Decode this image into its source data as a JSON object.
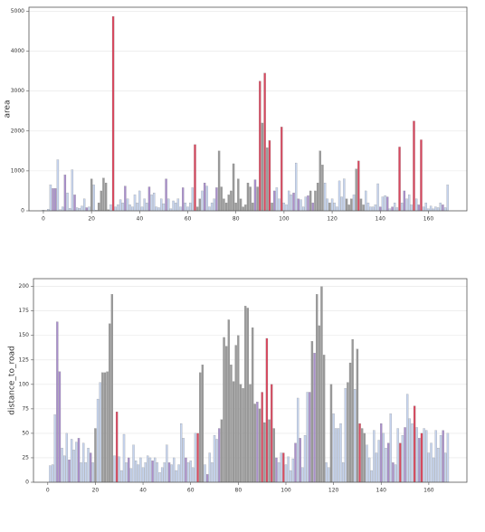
{
  "chart_data": [
    {
      "type": "bar",
      "y_label": "area",
      "grid": true,
      "xlim": [
        -6,
        176
      ],
      "xticks": [
        0,
        20,
        40,
        60,
        80,
        100,
        120,
        140,
        160
      ],
      "ylim": [
        0,
        5100
      ],
      "yticks": [
        0,
        1000,
        2000,
        3000,
        4000,
        5000
      ],
      "x": [
        0,
        1,
        2,
        3,
        4,
        5,
        6,
        7,
        8,
        9,
        10,
        11,
        12,
        13,
        14,
        15,
        16,
        17,
        18,
        19,
        20,
        21,
        22,
        23,
        24,
        25,
        26,
        27,
        28,
        29,
        30,
        31,
        32,
        33,
        34,
        35,
        36,
        37,
        38,
        39,
        40,
        41,
        42,
        43,
        44,
        45,
        46,
        47,
        48,
        49,
        50,
        51,
        52,
        53,
        54,
        55,
        56,
        57,
        58,
        59,
        60,
        61,
        62,
        63,
        64,
        65,
        66,
        67,
        68,
        69,
        70,
        71,
        72,
        73,
        74,
        75,
        76,
        77,
        78,
        79,
        80,
        81,
        82,
        83,
        84,
        85,
        86,
        87,
        88,
        89,
        90,
        91,
        92,
        93,
        94,
        95,
        96,
        97,
        98,
        99,
        100,
        101,
        102,
        103,
        104,
        105,
        106,
        107,
        108,
        109,
        110,
        111,
        112,
        113,
        114,
        115,
        116,
        117,
        118,
        119,
        120,
        121,
        122,
        123,
        124,
        125,
        126,
        127,
        128,
        129,
        130,
        131,
        132,
        133,
        134,
        135,
        136,
        137,
        138,
        139,
        140,
        141,
        142,
        143,
        144,
        145,
        146,
        147,
        148,
        149,
        150,
        151,
        152,
        153,
        154,
        155,
        156,
        157,
        158,
        159,
        160,
        161,
        162,
        163,
        164,
        165,
        166,
        167,
        168,
        169
      ],
      "values": [
        20,
        10,
        40,
        650,
        560,
        560,
        1280,
        30,
        100,
        900,
        450,
        60,
        1030,
        400,
        80,
        60,
        120,
        300,
        80,
        100,
        800,
        650,
        20,
        200,
        500,
        820,
        700,
        30,
        150,
        4870,
        100,
        150,
        280,
        200,
        620,
        300,
        150,
        100,
        400,
        200,
        500,
        100,
        300,
        200,
        600,
        400,
        450,
        100,
        80,
        300,
        180,
        800,
        300,
        50,
        250,
        200,
        300,
        100,
        580,
        200,
        100,
        200,
        580,
        1660,
        100,
        300,
        500,
        700,
        620,
        100,
        200,
        300,
        580,
        1500,
        600,
        300,
        200,
        400,
        500,
        1180,
        200,
        800,
        300,
        100,
        150,
        700,
        600,
        200,
        780,
        600,
        3250,
        2200,
        3450,
        1580,
        1760,
        200,
        500,
        580,
        300,
        2100,
        200,
        150,
        500,
        400,
        450,
        1200,
        300,
        280,
        100,
        350,
        380,
        500,
        200,
        500,
        700,
        1500,
        1150,
        700,
        300,
        200,
        300,
        200,
        100,
        750,
        350,
        800,
        300,
        150,
        300,
        400,
        1050,
        1250,
        300,
        150,
        500,
        200,
        100,
        100,
        150,
        680,
        100,
        350,
        380,
        350,
        50,
        100,
        200,
        80,
        1600,
        200,
        500,
        300,
        400,
        150,
        2250,
        300,
        150,
        1780,
        100,
        200,
        50,
        120,
        50,
        100,
        80,
        200,
        150,
        80,
        650,
        0
      ],
      "colors": [
        "#c6d4ee",
        "#c6d4ee",
        "#c6d4ee",
        "#c6d4ee",
        "#a98fcb",
        "#a98fcb",
        "#c6d4ee",
        "#c6d4ee",
        "#c6d4ee",
        "#a98fcb",
        "#c6d4ee",
        "#c6d4ee",
        "#c6d4ee",
        "#a98fcb",
        "#c6d4ee",
        "#c6d4ee",
        "#c6d4ee",
        "#c6d4ee",
        "#a98fcb",
        "#c6d4ee",
        "#9a9a9a",
        "#c6d4ee",
        "#c6d4ee",
        "#9a9a9a",
        "#9a9a9a",
        "#9a9a9a",
        "#9a9a9a",
        "#9a9a9a",
        "#c6d4ee",
        "#d9485f",
        "#c6d4ee",
        "#c6d4ee",
        "#c6d4ee",
        "#c6d4ee",
        "#a98fcb",
        "#c6d4ee",
        "#c6d4ee",
        "#c6d4ee",
        "#c6d4ee",
        "#c6d4ee",
        "#c6d4ee",
        "#c6d4ee",
        "#c6d4ee",
        "#c6d4ee",
        "#a98fcb",
        "#c6d4ee",
        "#c6d4ee",
        "#c6d4ee",
        "#c6d4ee",
        "#c6d4ee",
        "#c6d4ee",
        "#a98fcb",
        "#c6d4ee",
        "#c6d4ee",
        "#c6d4ee",
        "#c6d4ee",
        "#c6d4ee",
        "#c6d4ee",
        "#a98fcb",
        "#c6d4ee",
        "#c6d4ee",
        "#c6d4ee",
        "#c6d4ee",
        "#d9485f",
        "#9a9a9a",
        "#9a9a9a",
        "#c6d4ee",
        "#a98fcb",
        "#c6d4ee",
        "#c6d4ee",
        "#c6d4ee",
        "#c6d4ee",
        "#a98fcb",
        "#9a9a9a",
        "#9a9a9a",
        "#9a9a9a",
        "#9a9a9a",
        "#9a9a9a",
        "#9a9a9a",
        "#9a9a9a",
        "#9a9a9a",
        "#9a9a9a",
        "#9a9a9a",
        "#9a9a9a",
        "#9a9a9a",
        "#9a9a9a",
        "#9a9a9a",
        "#9a9a9a",
        "#a98fcb",
        "#9a9a9a",
        "#d9485f",
        "#9a9a9a",
        "#d9485f",
        "#9a9a9a",
        "#d9485f",
        "#9a9a9a",
        "#a98fcb",
        "#c6d4ee",
        "#c6d4ee",
        "#d9485f",
        "#c6d4ee",
        "#c6d4ee",
        "#c6d4ee",
        "#c6d4ee",
        "#a98fcb",
        "#c6d4ee",
        "#a98fcb",
        "#c6d4ee",
        "#c6d4ee",
        "#c6d4ee",
        "#a98fcb",
        "#9a9a9a",
        "#a98fcb",
        "#9a9a9a",
        "#9a9a9a",
        "#9a9a9a",
        "#9a9a9a",
        "#c6d4ee",
        "#c6d4ee",
        "#9a9a9a",
        "#c6d4ee",
        "#c6d4ee",
        "#c6d4ee",
        "#c6d4ee",
        "#c6d4ee",
        "#c6d4ee",
        "#9a9a9a",
        "#9a9a9a",
        "#9a9a9a",
        "#c6d4ee",
        "#9a9a9a",
        "#d9485f",
        "#9a9a9a",
        "#9a9a9a",
        "#c6d4ee",
        "#c6d4ee",
        "#c6d4ee",
        "#c6d4ee",
        "#c6d4ee",
        "#c6d4ee",
        "#a98fcb",
        "#c6d4ee",
        "#c6d4ee",
        "#a98fcb",
        "#c6d4ee",
        "#a98fcb",
        "#c6d4ee",
        "#c6d4ee",
        "#d9485f",
        "#c6d4ee",
        "#a98fcb",
        "#c6d4ee",
        "#c6d4ee",
        "#c6d4ee",
        "#d9485f",
        "#c6d4ee",
        "#a98fcb",
        "#d9485f",
        "#c6d4ee",
        "#c6d4ee",
        "#c6d4ee",
        "#c6d4ee",
        "#c6d4ee",
        "#c6d4ee",
        "#c6d4ee",
        "#c6d4ee",
        "#a98fcb",
        "#c6d4ee",
        "#c6d4ee",
        "#c6d4ee"
      ]
    },
    {
      "type": "bar",
      "y_label": "distance_to_road",
      "grid": true,
      "xlim": [
        -6,
        176
      ],
      "xticks": [
        0,
        20,
        40,
        60,
        80,
        100,
        120,
        140,
        160
      ],
      "ylim": [
        0,
        208
      ],
      "yticks": [
        0,
        25,
        50,
        75,
        100,
        125,
        150,
        175,
        200
      ],
      "x": [
        0,
        1,
        2,
        3,
        4,
        5,
        6,
        7,
        8,
        9,
        10,
        11,
        12,
        13,
        14,
        15,
        16,
        17,
        18,
        19,
        20,
        21,
        22,
        23,
        24,
        25,
        26,
        27,
        28,
        29,
        30,
        31,
        32,
        33,
        34,
        35,
        36,
        37,
        38,
        39,
        40,
        41,
        42,
        43,
        44,
        45,
        46,
        47,
        48,
        49,
        50,
        51,
        52,
        53,
        54,
        55,
        56,
        57,
        58,
        59,
        60,
        61,
        62,
        63,
        64,
        65,
        66,
        67,
        68,
        69,
        70,
        71,
        72,
        73,
        74,
        75,
        76,
        77,
        78,
        79,
        80,
        81,
        82,
        83,
        84,
        85,
        86,
        87,
        88,
        89,
        90,
        91,
        92,
        93,
        94,
        95,
        96,
        97,
        98,
        99,
        100,
        101,
        102,
        103,
        104,
        105,
        106,
        107,
        108,
        109,
        110,
        111,
        112,
        113,
        114,
        115,
        116,
        117,
        118,
        119,
        120,
        121,
        122,
        123,
        124,
        125,
        126,
        127,
        128,
        129,
        130,
        131,
        132,
        133,
        134,
        135,
        136,
        137,
        138,
        139,
        140,
        141,
        142,
        143,
        144,
        145,
        146,
        147,
        148,
        149,
        150,
        151,
        152,
        153,
        154,
        155,
        156,
        157,
        158,
        159,
        160,
        161,
        162,
        163,
        164,
        165,
        166,
        167,
        168,
        169
      ],
      "values": [
        0,
        17,
        18,
        69,
        164,
        113,
        35,
        27,
        50,
        23,
        44,
        33,
        41,
        45,
        20,
        40,
        20,
        35,
        30,
        20,
        55,
        85,
        102,
        112,
        112,
        113,
        162,
        192,
        27,
        72,
        26,
        12,
        49,
        20,
        25,
        14,
        38,
        22,
        18,
        25,
        15,
        20,
        27,
        25,
        22,
        25,
        20,
        10,
        15,
        20,
        38,
        20,
        18,
        25,
        12,
        18,
        60,
        45,
        25,
        20,
        22,
        15,
        50,
        50,
        112,
        120,
        18,
        8,
        30,
        20,
        48,
        44,
        55,
        64,
        148,
        139,
        166,
        120,
        103,
        140,
        150,
        100,
        96,
        180,
        178,
        100,
        158,
        80,
        82,
        75,
        92,
        61,
        147,
        64,
        100,
        55,
        25,
        20,
        30,
        30,
        18,
        26,
        12,
        24,
        40,
        86,
        45,
        15,
        48,
        92,
        92,
        144,
        132,
        192,
        160,
        200,
        130,
        20,
        15,
        100,
        70,
        55,
        55,
        60,
        20,
        96,
        102,
        122,
        146,
        95,
        136,
        60,
        55,
        50,
        38,
        25,
        12,
        53,
        30,
        43,
        60,
        50,
        35,
        40,
        70,
        20,
        18,
        55,
        40,
        48,
        56,
        90,
        65,
        60,
        78,
        56,
        45,
        50,
        55,
        53,
        30,
        40,
        25,
        53,
        35,
        48,
        53,
        30,
        50,
        0
      ],
      "colors": [
        "#c6d4ee",
        "#c6d4ee",
        "#c6d4ee",
        "#c6d4ee",
        "#a98fcb",
        "#a98fcb",
        "#c6d4ee",
        "#c6d4ee",
        "#c6d4ee",
        "#a98fcb",
        "#c6d4ee",
        "#c6d4ee",
        "#c6d4ee",
        "#a98fcb",
        "#c6d4ee",
        "#c6d4ee",
        "#c6d4ee",
        "#c6d4ee",
        "#a98fcb",
        "#c6d4ee",
        "#9a9a9a",
        "#c6d4ee",
        "#c6d4ee",
        "#9a9a9a",
        "#9a9a9a",
        "#9a9a9a",
        "#9a9a9a",
        "#9a9a9a",
        "#c6d4ee",
        "#d9485f",
        "#c6d4ee",
        "#c6d4ee",
        "#c6d4ee",
        "#c6d4ee",
        "#a98fcb",
        "#c6d4ee",
        "#c6d4ee",
        "#c6d4ee",
        "#c6d4ee",
        "#c6d4ee",
        "#c6d4ee",
        "#c6d4ee",
        "#c6d4ee",
        "#c6d4ee",
        "#a98fcb",
        "#c6d4ee",
        "#c6d4ee",
        "#c6d4ee",
        "#c6d4ee",
        "#c6d4ee",
        "#c6d4ee",
        "#a98fcb",
        "#c6d4ee",
        "#c6d4ee",
        "#c6d4ee",
        "#c6d4ee",
        "#c6d4ee",
        "#c6d4ee",
        "#a98fcb",
        "#c6d4ee",
        "#c6d4ee",
        "#c6d4ee",
        "#c6d4ee",
        "#d9485f",
        "#9a9a9a",
        "#9a9a9a",
        "#c6d4ee",
        "#a98fcb",
        "#c6d4ee",
        "#c6d4ee",
        "#c6d4ee",
        "#c6d4ee",
        "#a98fcb",
        "#9a9a9a",
        "#9a9a9a",
        "#9a9a9a",
        "#9a9a9a",
        "#9a9a9a",
        "#9a9a9a",
        "#9a9a9a",
        "#9a9a9a",
        "#9a9a9a",
        "#9a9a9a",
        "#9a9a9a",
        "#9a9a9a",
        "#9a9a9a",
        "#9a9a9a",
        "#9a9a9a",
        "#a98fcb",
        "#9a9a9a",
        "#d9485f",
        "#9a9a9a",
        "#d9485f",
        "#9a9a9a",
        "#d9485f",
        "#9a9a9a",
        "#a98fcb",
        "#c6d4ee",
        "#c6d4ee",
        "#d9485f",
        "#c6d4ee",
        "#c6d4ee",
        "#c6d4ee",
        "#c6d4ee",
        "#a98fcb",
        "#c6d4ee",
        "#a98fcb",
        "#c6d4ee",
        "#c6d4ee",
        "#c6d4ee",
        "#a98fcb",
        "#9a9a9a",
        "#a98fcb",
        "#9a9a9a",
        "#9a9a9a",
        "#9a9a9a",
        "#9a9a9a",
        "#c6d4ee",
        "#c6d4ee",
        "#9a9a9a",
        "#c6d4ee",
        "#c6d4ee",
        "#c6d4ee",
        "#c6d4ee",
        "#c6d4ee",
        "#c6d4ee",
        "#9a9a9a",
        "#9a9a9a",
        "#9a9a9a",
        "#c6d4ee",
        "#9a9a9a",
        "#d9485f",
        "#9a9a9a",
        "#9a9a9a",
        "#c6d4ee",
        "#c6d4ee",
        "#c6d4ee",
        "#c6d4ee",
        "#c6d4ee",
        "#c6d4ee",
        "#a98fcb",
        "#c6d4ee",
        "#c6d4ee",
        "#a98fcb",
        "#c6d4ee",
        "#a98fcb",
        "#c6d4ee",
        "#c6d4ee",
        "#d9485f",
        "#c6d4ee",
        "#a98fcb",
        "#c6d4ee",
        "#c6d4ee",
        "#c6d4ee",
        "#d9485f",
        "#c6d4ee",
        "#a98fcb",
        "#d9485f",
        "#c6d4ee",
        "#c6d4ee",
        "#c6d4ee",
        "#c6d4ee",
        "#c6d4ee",
        "#c6d4ee",
        "#c6d4ee",
        "#c6d4ee",
        "#a98fcb",
        "#c6d4ee",
        "#c6d4ee",
        "#c6d4ee"
      ]
    }
  ]
}
